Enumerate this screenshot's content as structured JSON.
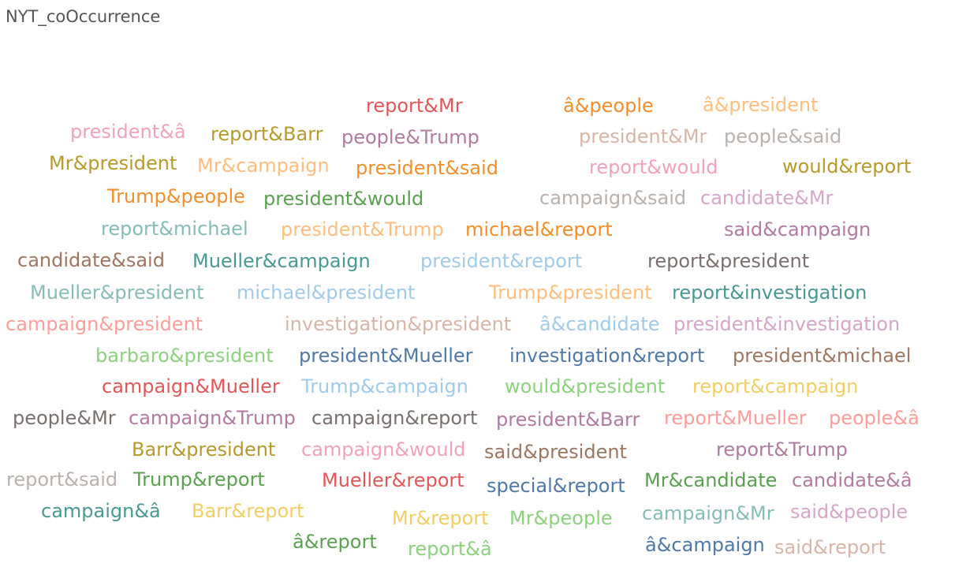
{
  "header": {
    "title": "NYT_coOccurrence"
  },
  "colors": {
    "red": "#e15759",
    "orange": "#f28e2b",
    "lightorange": "#ffbe7d",
    "olive": "#b6992d",
    "yellow": "#f1ce63",
    "pink": "#f1a2b8",
    "salmon": "#ff9d9a",
    "mauve": "#b07aa1",
    "lightmauve": "#d4a6c8",
    "teal": "#499894",
    "lightteal": "#86bcb6",
    "blue": "#4e79a7",
    "lightblue": "#a0cbe8",
    "green": "#59a14f",
    "lightgreen": "#8cd17d",
    "gray": "#79706e",
    "lightgray": "#bab0ac",
    "brown": "#9d7660",
    "tan": "#d7b5a6"
  },
  "chart_data": {
    "type": "wordcloud",
    "title": "NYT_coOccurrence",
    "words": [
      {
        "text": "report&Mr",
        "color": "#e15759"
      },
      {
        "text": "â&people",
        "color": "#f28e2b"
      },
      {
        "text": "â&president",
        "color": "#ffbe7d"
      },
      {
        "text": "president&â",
        "color": "#f1a2b8"
      },
      {
        "text": "report&Barr",
        "color": "#b6992d"
      },
      {
        "text": "people&Trump",
        "color": "#b07aa1"
      },
      {
        "text": "president&Mr",
        "color": "#d7b5a6"
      },
      {
        "text": "people&said",
        "color": "#bab0ac"
      },
      {
        "text": "Mr&president",
        "color": "#b6992d"
      },
      {
        "text": "Mr&campaign",
        "color": "#ffbe7d"
      },
      {
        "text": "president&said",
        "color": "#f28e2b"
      },
      {
        "text": "report&would",
        "color": "#f1a2b8"
      },
      {
        "text": "would&report",
        "color": "#b6992d"
      },
      {
        "text": "Trump&people",
        "color": "#f28e2b"
      },
      {
        "text": "president&would",
        "color": "#59a14f"
      },
      {
        "text": "campaign&said",
        "color": "#bab0ac"
      },
      {
        "text": "candidate&Mr",
        "color": "#d4a6c8"
      },
      {
        "text": "report&michael",
        "color": "#86bcb6"
      },
      {
        "text": "president&Trump",
        "color": "#ffbe7d"
      },
      {
        "text": "michael&report",
        "color": "#f28e2b"
      },
      {
        "text": "said&campaign",
        "color": "#b07aa1"
      },
      {
        "text": "candidate&said",
        "color": "#9d7660"
      },
      {
        "text": "Mueller&campaign",
        "color": "#499894"
      },
      {
        "text": "president&report",
        "color": "#a0cbe8"
      },
      {
        "text": "report&president",
        "color": "#79706e"
      },
      {
        "text": "Mueller&president",
        "color": "#86bcb6"
      },
      {
        "text": "michael&president",
        "color": "#a0cbe8"
      },
      {
        "text": "Trump&president",
        "color": "#ffbe7d"
      },
      {
        "text": "report&investigation",
        "color": "#499894"
      },
      {
        "text": "campaign&president",
        "color": "#ff9d9a"
      },
      {
        "text": "investigation&president",
        "color": "#d7b5a6"
      },
      {
        "text": "â&candidate",
        "color": "#a0cbe8"
      },
      {
        "text": "president&investigation",
        "color": "#d4a6c8"
      },
      {
        "text": "barbaro&president",
        "color": "#8cd17d"
      },
      {
        "text": "president&Mueller",
        "color": "#4e79a7"
      },
      {
        "text": "investigation&report",
        "color": "#4e79a7"
      },
      {
        "text": "president&michael",
        "color": "#9d7660"
      },
      {
        "text": "campaign&Mueller",
        "color": "#e15759"
      },
      {
        "text": "Trump&campaign",
        "color": "#a0cbe8"
      },
      {
        "text": "would&president",
        "color": "#8cd17d"
      },
      {
        "text": "report&campaign",
        "color": "#f1ce63"
      },
      {
        "text": "people&Mr",
        "color": "#79706e"
      },
      {
        "text": "campaign&Trump",
        "color": "#b07aa1"
      },
      {
        "text": "campaign&report",
        "color": "#79706e"
      },
      {
        "text": "president&Barr",
        "color": "#b07aa1"
      },
      {
        "text": "report&Mueller",
        "color": "#ff9d9a"
      },
      {
        "text": "people&â",
        "color": "#ff9d9a"
      },
      {
        "text": "Barr&president",
        "color": "#b6992d"
      },
      {
        "text": "campaign&would",
        "color": "#f1a2b8"
      },
      {
        "text": "said&president",
        "color": "#9d7660"
      },
      {
        "text": "report&Trump",
        "color": "#b07aa1"
      },
      {
        "text": "report&said",
        "color": "#bab0ac"
      },
      {
        "text": "Trump&report",
        "color": "#59a14f"
      },
      {
        "text": "Mueller&report",
        "color": "#e15759"
      },
      {
        "text": "special&report",
        "color": "#4e79a7"
      },
      {
        "text": "Mr&candidate",
        "color": "#59a14f"
      },
      {
        "text": "candidate&â",
        "color": "#b07aa1"
      },
      {
        "text": "campaign&â",
        "color": "#499894"
      },
      {
        "text": "Barr&report",
        "color": "#f1ce63"
      },
      {
        "text": "Mr&report",
        "color": "#f1ce63"
      },
      {
        "text": "Mr&people",
        "color": "#8cd17d"
      },
      {
        "text": "campaign&Mr",
        "color": "#86bcb6"
      },
      {
        "text": "said&people",
        "color": "#d4a6c8"
      },
      {
        "text": "â&report",
        "color": "#59a14f"
      },
      {
        "text": "report&â",
        "color": "#8cd17d"
      },
      {
        "text": "â&campaign",
        "color": "#4e79a7"
      },
      {
        "text": "said&report",
        "color": "#d7b5a6"
      }
    ]
  }
}
